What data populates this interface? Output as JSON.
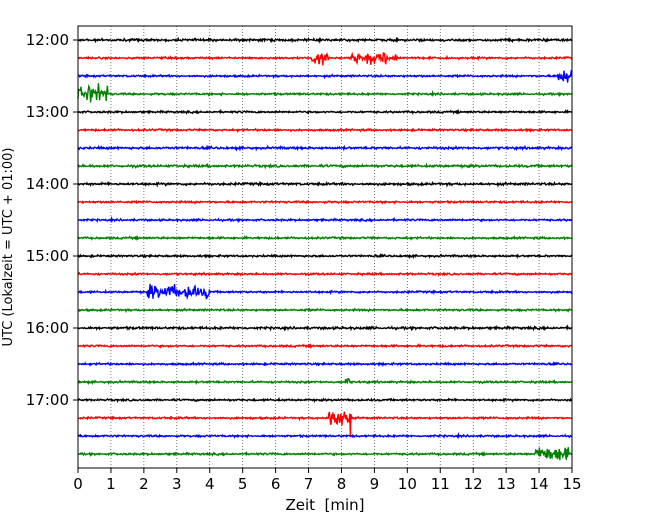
{
  "chart_data": {
    "type": "line",
    "title": "",
    "xlabel": "Zeit  [min]",
    "ylabel": "UTC (Lokalzeit = UTC + 01:00)",
    "xlim": [
      0,
      15
    ],
    "x_ticks": [
      0,
      1,
      2,
      3,
      4,
      5,
      6,
      7,
      8,
      9,
      10,
      11,
      12,
      13,
      14,
      15
    ],
    "x_grid": true,
    "x_grid_style": "dotted",
    "y_tick_labels": [
      "12:00",
      "13:00",
      "14:00",
      "15:00",
      "16:00",
      "17:00"
    ],
    "trace_interval_min": 15,
    "first_trace": "12:00",
    "trace_count": 24,
    "trace_colors": [
      "#000000",
      "#ff0000",
      "#0000ff",
      "#008000"
    ],
    "noise_amplitude": [
      0.12,
      0.1,
      0.1,
      0.1,
      0.1,
      0.1,
      0.12,
      0.12,
      0.12,
      0.1,
      0.1,
      0.1,
      0.1,
      0.1,
      0.1,
      0.1,
      0.12,
      0.1,
      0.1,
      0.1,
      0.1,
      0.1,
      0.1,
      0.1
    ],
    "events": [
      {
        "trace_time": "12:15",
        "start_min": 7.1,
        "end_min": 7.6,
        "amplitude": 0.9
      },
      {
        "trace_time": "12:15",
        "start_min": 8.3,
        "end_min": 9.7,
        "amplitude": 0.75
      },
      {
        "trace_time": "12:30",
        "start_min": 14.55,
        "end_min": 15.0,
        "amplitude": 0.9
      },
      {
        "trace_time": "12:45",
        "start_min": 0.0,
        "end_min": 0.9,
        "amplitude": 1.1
      },
      {
        "trace_time": "15:30",
        "start_min": 2.1,
        "end_min": 4.0,
        "amplitude": 0.85
      },
      {
        "trace_time": "16:45",
        "start_min": 8.1,
        "end_min": 8.25,
        "amplitude": 0.6
      },
      {
        "trace_time": "17:15",
        "start_min": 7.6,
        "end_min": 8.3,
        "amplitude": 1.6
      },
      {
        "trace_time": "17:45",
        "start_min": 13.9,
        "end_min": 14.9,
        "amplitude": 1.0
      }
    ]
  }
}
